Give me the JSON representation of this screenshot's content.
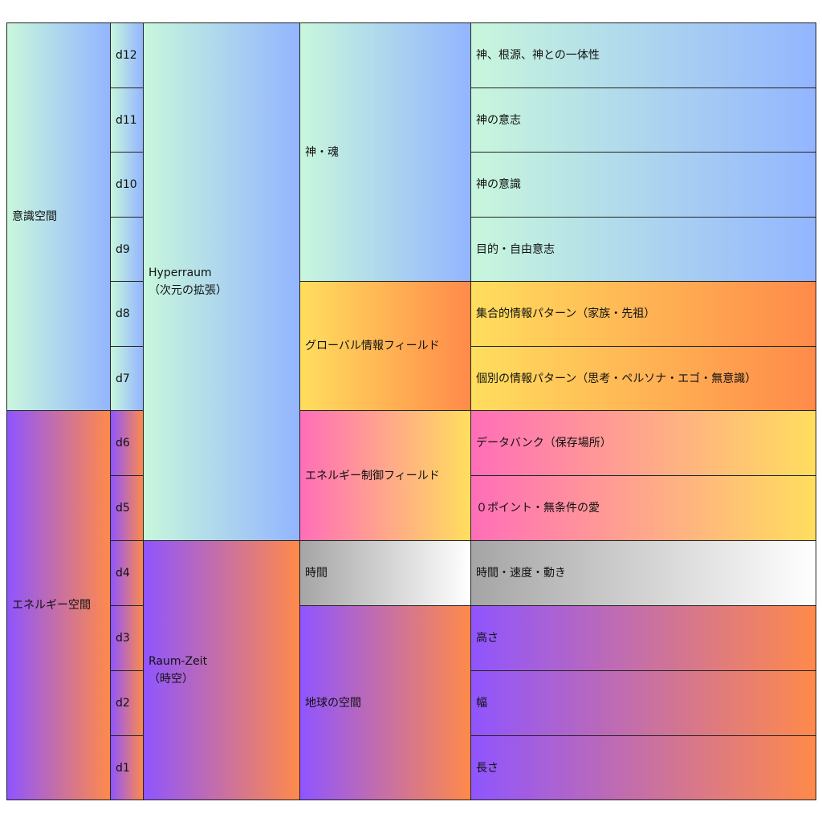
{
  "spaces": [
    {
      "label": "意識空間"
    },
    {
      "label": "エネルギー空間"
    }
  ],
  "dimensions": [
    "d12",
    "d11",
    "d10",
    "d9",
    "d8",
    "d7",
    "d6",
    "d5",
    "d4",
    "d3",
    "d2",
    "d1"
  ],
  "realms": [
    {
      "label": "Hyperraum\n（次元の拡張）"
    },
    {
      "label": "Raum-Zeit\n（時空）"
    }
  ],
  "fields": [
    {
      "label": "神・魂"
    },
    {
      "label": "グローバル情報フィールド"
    },
    {
      "label": "エネルギー制御フィールド"
    },
    {
      "label": "時間"
    },
    {
      "label": "地球の空間"
    }
  ],
  "details": [
    "神、根源、神との一体性",
    "神の意志",
    "神の意識",
    "目的・自由意志",
    "集合的情報パターン（家族・先祖）",
    "個別の情報パターン（思考・ペルソナ・エゴ・無意識）",
    "データバンク（保存場所）",
    "０ポイント・無条件の愛",
    "時間・速度・動き",
    "高さ",
    "幅",
    "長さ"
  ],
  "colors": {
    "cyan": "#c8f7dc",
    "blue": "#93b5ff",
    "yellow": "#ffde5e",
    "orange": "#ff8a4a",
    "pink": "#ff6eb8",
    "purple": "#8f55ff",
    "gray": "#a5a5a5",
    "border": "#222222"
  }
}
